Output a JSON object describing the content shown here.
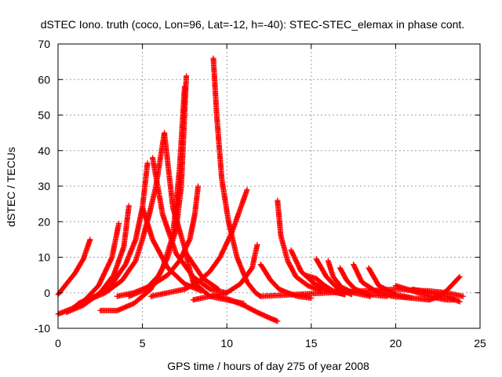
{
  "chart_data": {
    "type": "scatter",
    "title": "dSTEC Iono. truth (coco, Lon=96, Lat=-12, h=-40): STEC-STEC_elemax in phase cont.",
    "xlabel": "GPS time / hours of day 275 of year 2008",
    "ylabel": "dSTEC  / TECUs",
    "xlim": [
      0,
      25
    ],
    "ylim": [
      -10,
      70
    ],
    "x_ticks": [
      "0",
      "5",
      "10",
      "15",
      "20",
      "25"
    ],
    "y_ticks": [
      "-10",
      "0",
      "10",
      "20",
      "30",
      "40",
      "50",
      "60",
      "70"
    ],
    "grid": true,
    "marker": "+",
    "marker_color": "#ff0000",
    "series": [
      {
        "x": [
          0.0,
          0.5,
          1.0,
          1.5,
          1.9
        ],
        "y": [
          -0.5,
          2.5,
          5.5,
          9.5,
          15.0
        ]
      },
      {
        "x": [
          0.0,
          0.8,
          1.6,
          2.4,
          3.2,
          3.6
        ],
        "y": [
          -6.0,
          -4.5,
          -2.0,
          2.0,
          10.0,
          19.5
        ]
      },
      {
        "x": [
          0.5,
          1.5,
          2.5,
          3.3,
          3.9,
          4.2
        ],
        "y": [
          -5.5,
          -3.5,
          0.0,
          5.0,
          13.0,
          24.5
        ]
      },
      {
        "x": [
          1.2,
          2.2,
          3.2,
          4.0,
          4.6,
          5.0,
          5.3
        ],
        "y": [
          -3.0,
          -1.0,
          2.5,
          8.0,
          15.0,
          24.0,
          36.5
        ]
      },
      {
        "x": [
          5.0,
          5.6,
          6.5,
          7.5,
          8.5
        ],
        "y": [
          24.0,
          15.0,
          7.0,
          2.5,
          0.5
        ]
      },
      {
        "x": [
          1.8,
          2.8,
          3.8,
          4.6,
          5.0,
          5.4,
          5.8,
          6.3
        ],
        "y": [
          -2.0,
          0.0,
          3.5,
          9.0,
          15.0,
          22.0,
          30.0,
          45.0
        ]
      },
      {
        "x": [
          5.6,
          6.2,
          7.0,
          8.0,
          9.0,
          10.0
        ],
        "y": [
          38.0,
          22.0,
          11.0,
          4.5,
          1.0,
          0.0
        ]
      },
      {
        "x": [
          6.3,
          6.8,
          7.6,
          8.6,
          9.5
        ],
        "y": [
          45.0,
          24.0,
          11.0,
          4.0,
          1.0
        ]
      },
      {
        "x": [
          2.5,
          3.5,
          4.5,
          5.5,
          6.2,
          6.8,
          7.2,
          7.5
        ],
        "y": [
          -5.0,
          -5.0,
          -3.0,
          1.0,
          7.0,
          16.0,
          35.0,
          58.0
        ]
      },
      {
        "x": [
          7.6,
          7.3,
          7.0,
          6.5,
          6.0,
          5.2,
          4.2
        ],
        "y": [
          61.0,
          30.0,
          18.0,
          10.0,
          5.0,
          1.0,
          -1.0
        ]
      },
      {
        "x": [
          7.5,
          8.0,
          9.0,
          10.0,
          11.0
        ],
        "y": [
          12.0,
          3.0,
          -1.0,
          -2.0,
          -3.0
        ]
      },
      {
        "x": [
          3.5,
          4.5,
          5.5,
          6.5,
          7.2,
          7.8,
          8.1,
          8.3
        ],
        "y": [
          -1.0,
          0.0,
          2.0,
          5.0,
          9.0,
          15.0,
          22.0,
          30.0
        ]
      },
      {
        "x": [
          9.2,
          9.4,
          9.7,
          10.1,
          10.6,
          11.2,
          11.7,
          12.0
        ],
        "y": [
          66.0,
          50.0,
          32.0,
          20.0,
          10.0,
          3.0,
          0.0,
          -1.0
        ]
      },
      {
        "x": [
          5.5,
          6.5,
          7.5,
          8.3,
          9.0,
          9.6,
          10.3,
          11.2
        ],
        "y": [
          -1.0,
          0.0,
          1.0,
          3.0,
          6.0,
          10.0,
          17.0,
          29.0
        ]
      },
      {
        "x": [
          9.5,
          10.2,
          11.0,
          11.8,
          12.5,
          13.0
        ],
        "y": [
          -1.0,
          -2.0,
          -3.5,
          -5.5,
          -7.0,
          -8.0
        ]
      },
      {
        "x": [
          8.0,
          9.0,
          10.0,
          10.8,
          11.5,
          11.8
        ],
        "y": [
          -2.0,
          -1.0,
          0.0,
          2.5,
          7.0,
          13.5
        ]
      },
      {
        "x": [
          12.0,
          12.6,
          13.1,
          13.6,
          14.2,
          15.0
        ],
        "y": [
          8.0,
          3.5,
          1.0,
          0.0,
          -1.0,
          -1.5
        ]
      },
      {
        "x": [
          13.0,
          13.2,
          13.6,
          14.1,
          14.8,
          15.6
        ],
        "y": [
          26.0,
          16.0,
          9.0,
          4.5,
          2.0,
          0.5
        ]
      },
      {
        "x": [
          13.8,
          14.4,
          15.2,
          16.0,
          17.0
        ],
        "y": [
          12.0,
          6.0,
          2.5,
          0.5,
          -0.5
        ]
      },
      {
        "x": [
          14.6,
          15.3,
          15.8,
          16.3,
          17.0
        ],
        "y": [
          5.0,
          4.0,
          2.0,
          0.5,
          -0.5
        ]
      },
      {
        "x": [
          15.3,
          15.9,
          16.6,
          17.4
        ],
        "y": [
          9.5,
          4.5,
          1.0,
          -0.5
        ]
      },
      {
        "x": [
          16.0,
          16.3,
          16.8,
          17.5,
          18.5
        ],
        "y": [
          9.0,
          4.5,
          1.5,
          0.0,
          -1.0
        ]
      },
      {
        "x": [
          16.7,
          17.1,
          17.6,
          18.4,
          19.5
        ],
        "y": [
          7.0,
          3.5,
          1.0,
          -0.5,
          -1.0
        ]
      },
      {
        "x": [
          17.5,
          18.0,
          18.8,
          19.8,
          21.0
        ],
        "y": [
          8.0,
          3.0,
          0.5,
          -1.0,
          -1.5
        ]
      },
      {
        "x": [
          18.4,
          19.0,
          20.0,
          21.0,
          22.0
        ],
        "y": [
          7.0,
          2.0,
          -0.5,
          -1.5,
          -2.0
        ]
      },
      {
        "x": [
          20.0,
          21.0,
          22.0,
          23.0,
          23.5
        ],
        "y": [
          2.0,
          0.5,
          -1.0,
          -2.0,
          -2.0
        ]
      },
      {
        "x": [
          12.0,
          14.0,
          16.0,
          18.0,
          20.0,
          22.0,
          23.0,
          24.0
        ],
        "y": [
          -1.0,
          -0.5,
          0.0,
          0.5,
          1.0,
          0.5,
          0.0,
          -1.0
        ]
      },
      {
        "x": [
          22.0,
          22.6,
          23.0,
          23.4,
          23.8
        ],
        "y": [
          -2.0,
          -1.0,
          0.5,
          2.5,
          4.5
        ]
      },
      {
        "x": [
          21.0,
          22.0,
          23.0,
          23.8
        ],
        "y": [
          1.0,
          0.0,
          -1.0,
          -2.5
        ]
      }
    ]
  }
}
